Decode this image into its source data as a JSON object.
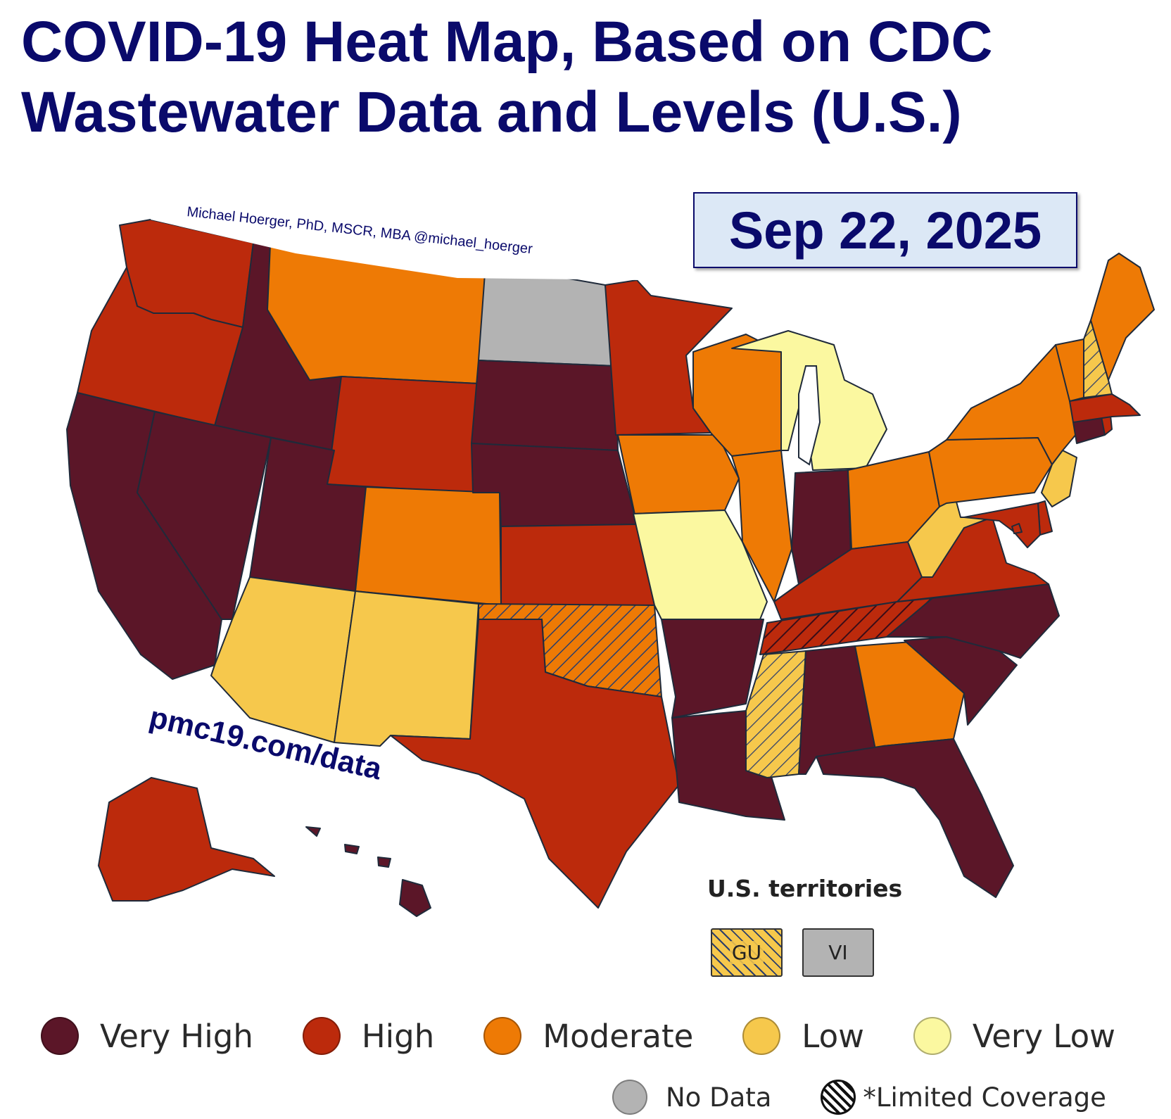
{
  "title_line1": "COVID-19 Heat Map, Based on CDC",
  "title_line2": "Wastewater Data and Levels (U.S.)",
  "date": "Sep 22, 2025",
  "credit": "Michael Hoerger, PhD, MSCR, MBA  @michael_hoerger",
  "url": "pmc19.com/data",
  "territories": {
    "title": "U.S. territories",
    "items": [
      {
        "code": "GU",
        "level": "Low",
        "limited_coverage": true
      },
      {
        "code": "VI",
        "level": "No Data",
        "limited_coverage": false
      }
    ]
  },
  "levels": {
    "very_high": {
      "label": "Very High",
      "color": "#5b1628"
    },
    "high": {
      "label": "High",
      "color": "#bc2a0c"
    },
    "moderate": {
      "label": "Moderate",
      "color": "#ee7a05"
    },
    "low": {
      "label": "Low",
      "color": "#f6c84c"
    },
    "very_low": {
      "label": "Very Low",
      "color": "#fbf8a0"
    },
    "no_data": {
      "label": "No Data",
      "color": "#b3b3b3"
    },
    "limited": {
      "label": "*Limited Coverage"
    }
  },
  "states": {
    "WA": "high",
    "OR": "high",
    "CA": "very_high",
    "ID": "very_high",
    "NV": "very_high",
    "MT": "moderate",
    "WY": "high",
    "UT": "very_high",
    "AZ": "low",
    "CO": "moderate",
    "NM": "low",
    "ND": "no_data",
    "SD": "very_high",
    "NE": "very_high",
    "KS": "high",
    "OK": "moderate*",
    "TX": "high",
    "MN": "high",
    "IA": "moderate",
    "MO": "very_low",
    "AR": "very_high",
    "LA": "very_high",
    "WI": "moderate",
    "IL": "moderate",
    "MI": "very_low",
    "IN": "very_high",
    "OH": "moderate",
    "KY": "high",
    "TN": "high*",
    "MS": "low*",
    "AL": "very_high",
    "GA": "moderate",
    "FL": "very_high",
    "SC": "very_high",
    "NC": "very_high",
    "VA": "high",
    "WV": "low",
    "PA": "moderate",
    "NY": "moderate",
    "NJ": "low",
    "DE": "high",
    "MD": "high",
    "DC": "high",
    "CT": "very_high",
    "RI": "high",
    "MA": "high",
    "VT": "moderate",
    "NH": "low*",
    "ME": "moderate",
    "AK": "high",
    "HI": "very_high"
  }
}
